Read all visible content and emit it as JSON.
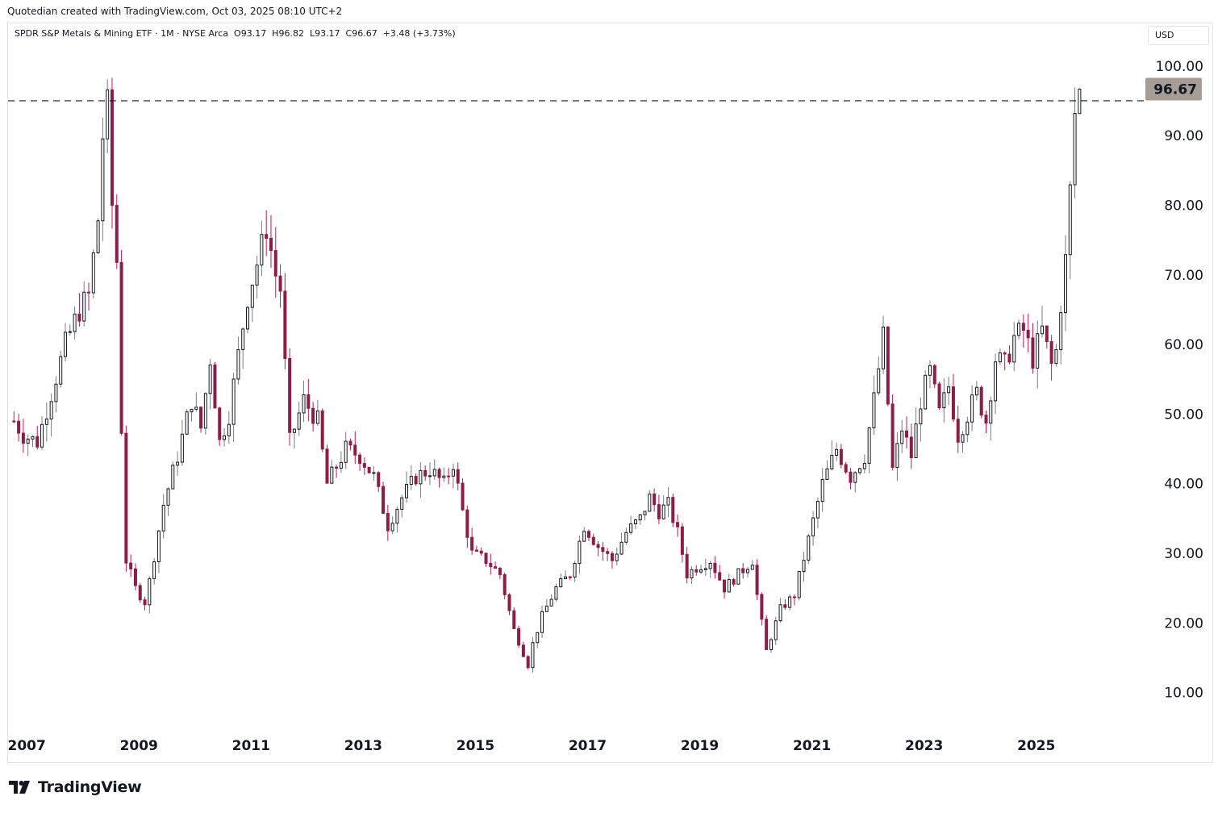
{
  "caption": "Quotedian created with TradingView.com, Oct 03, 2025 08:10 UTC+2",
  "legend": "SPDR S&P Metals & Mining ETF · 1M · NYSE Arca  O93.17  H96.82  L93.17  C96.67  +3.48 (+3.73%)",
  "currency": "USD",
  "brand": {
    "name": "TradingView",
    "logo_icon": "tradingview-logo-icon"
  },
  "colors": {
    "up": "#131722",
    "down": "#8c1c48",
    "wick_up": "#787b86",
    "wick_down": "#c2185b",
    "last_tag": "#a69e96",
    "grid": "#e0e3eb"
  },
  "chart_data": {
    "type": "candlestick",
    "interval": "1M",
    "symbol": "SPDR S&P Metals & Mining ETF",
    "exchange": "NYSE Arca",
    "last": {
      "open": 93.17,
      "high": 96.82,
      "low": 93.17,
      "close": 96.67,
      "change": "+3.48 (+3.73%)"
    },
    "y_ticks": [
      "100.00",
      "90.00",
      "80.00",
      "70.00",
      "60.00",
      "50.00",
      "40.00",
      "30.00",
      "20.00",
      "10.00"
    ],
    "ylim": [
      0,
      106
    ],
    "x_ticks": [
      "2007",
      "2009",
      "2011",
      "2013",
      "2015",
      "2017",
      "2019",
      "2021",
      "2023",
      "2025"
    ],
    "xlim": [
      "2006-09",
      "2026-12"
    ],
    "last_price_label": "96.67",
    "resistance_line": 95,
    "anchors": [
      [
        "2006-10",
        49
      ],
      [
        "2006-12",
        47
      ],
      [
        "2007-03",
        46
      ],
      [
        "2007-06",
        53
      ],
      [
        "2007-09",
        60
      ],
      [
        "2007-12",
        65
      ],
      [
        "2008-02",
        67
      ],
      [
        "2008-04",
        78
      ],
      [
        "2008-05",
        90
      ],
      [
        "2008-06",
        94
      ],
      [
        "2008-07",
        80
      ],
      [
        "2008-08",
        72
      ],
      [
        "2008-09",
        48
      ],
      [
        "2008-10",
        29
      ],
      [
        "2008-12",
        25
      ],
      [
        "2009-02",
        23
      ],
      [
        "2009-03",
        26
      ],
      [
        "2009-06",
        37
      ],
      [
        "2009-09",
        44
      ],
      [
        "2009-12",
        52
      ],
      [
        "2010-02",
        48
      ],
      [
        "2010-04",
        58
      ],
      [
        "2010-06",
        46
      ],
      [
        "2010-08",
        50
      ],
      [
        "2010-12",
        67
      ],
      [
        "2011-03",
        74
      ],
      [
        "2011-04",
        77
      ],
      [
        "2011-06",
        70
      ],
      [
        "2011-07",
        68
      ],
      [
        "2011-09",
        46
      ],
      [
        "2011-12",
        52
      ],
      [
        "2012-03",
        49
      ],
      [
        "2012-05",
        40
      ],
      [
        "2012-09",
        45
      ],
      [
        "2012-12",
        44
      ],
      [
        "2013-03",
        41
      ],
      [
        "2013-06",
        34
      ],
      [
        "2013-09",
        38
      ],
      [
        "2013-12",
        41
      ],
      [
        "2014-03",
        42
      ],
      [
        "2014-06",
        40
      ],
      [
        "2014-08",
        43
      ],
      [
        "2014-10",
        36
      ],
      [
        "2014-12",
        30
      ],
      [
        "2015-03",
        29
      ],
      [
        "2015-06",
        27
      ],
      [
        "2015-09",
        19
      ],
      [
        "2015-12",
        14
      ],
      [
        "2016-01",
        17
      ],
      [
        "2016-03",
        21
      ],
      [
        "2016-06",
        25
      ],
      [
        "2016-09",
        27
      ],
      [
        "2016-12",
        34
      ],
      [
        "2017-03",
        31
      ],
      [
        "2017-06",
        29
      ],
      [
        "2017-09",
        33
      ],
      [
        "2017-12",
        35
      ],
      [
        "2018-02",
        38
      ],
      [
        "2018-04",
        36
      ],
      [
        "2018-06",
        37
      ],
      [
        "2018-08",
        33
      ],
      [
        "2018-10",
        27
      ],
      [
        "2018-12",
        28
      ],
      [
        "2019-03",
        29
      ],
      [
        "2019-06",
        25
      ],
      [
        "2019-09",
        27
      ],
      [
        "2019-12",
        29
      ],
      [
        "2020-01",
        24
      ],
      [
        "2020-03",
        16
      ],
      [
        "2020-06",
        22
      ],
      [
        "2020-09",
        24
      ],
      [
        "2020-12",
        32
      ],
      [
        "2021-03",
        40
      ],
      [
        "2021-06",
        45
      ],
      [
        "2021-09",
        41
      ],
      [
        "2021-12",
        44
      ],
      [
        "2022-02",
        52
      ],
      [
        "2022-04",
        61
      ],
      [
        "2022-06",
        42
      ],
      [
        "2022-08",
        48
      ],
      [
        "2022-10",
        44
      ],
      [
        "2022-12",
        52
      ],
      [
        "2023-02",
        56
      ],
      [
        "2023-04",
        50
      ],
      [
        "2023-06",
        54
      ],
      [
        "2023-08",
        47
      ],
      [
        "2023-10",
        50
      ],
      [
        "2023-12",
        53
      ],
      [
        "2024-02",
        49
      ],
      [
        "2024-04",
        58
      ],
      [
        "2024-06",
        57
      ],
      [
        "2024-08",
        61
      ],
      [
        "2024-10",
        62
      ],
      [
        "2024-12",
        58
      ],
      [
        "2025-02",
        62
      ],
      [
        "2025-04",
        57
      ],
      [
        "2025-05",
        59
      ],
      [
        "2025-06",
        66
      ],
      [
        "2025-07",
        72
      ],
      [
        "2025-08",
        82
      ],
      [
        "2025-09",
        93.17
      ],
      [
        "2025-10",
        96.67
      ]
    ]
  }
}
